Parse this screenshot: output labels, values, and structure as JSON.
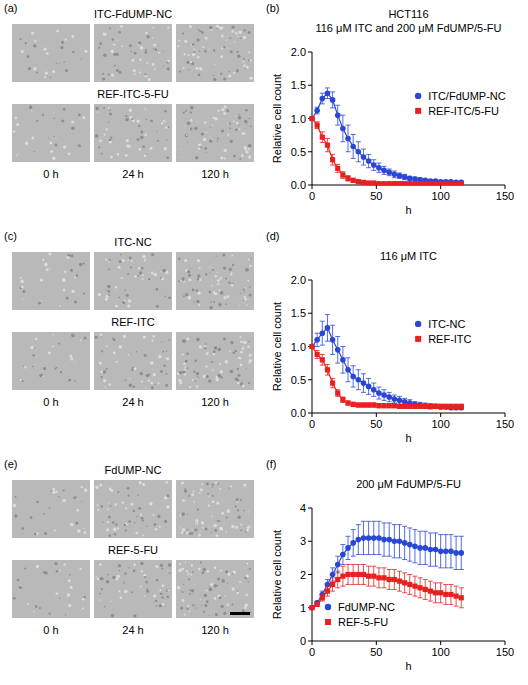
{
  "chart_data": [
    {
      "type": "line",
      "panel_label": "(b)",
      "title": "HCT116",
      "subtitle": "116 μM ITC and 200 μM FdUMP/5-FU",
      "x_label": "h",
      "y_label": "Relative cell count",
      "x": [
        0,
        4,
        8,
        12,
        16,
        20,
        24,
        28,
        32,
        36,
        40,
        44,
        48,
        52,
        56,
        60,
        64,
        68,
        72,
        76,
        80,
        84,
        88,
        92,
        96,
        100,
        104,
        108,
        112,
        116
      ],
      "xlim": [
        0,
        150
      ],
      "xticks": [
        0,
        50,
        100,
        150
      ],
      "ylim": [
        0,
        2
      ],
      "yticks": [
        {
          "value": 0,
          "label": "0.0"
        },
        0.5,
        {
          "value": 1,
          "label": "1.0"
        },
        1.5,
        {
          "value": 2,
          "label": "2.0"
        }
      ],
      "legend": "right",
      "series": [
        {
          "name": "ITC/FdUMP-NC",
          "color": "#2a46d6",
          "marker": "circle",
          "values": [
            1.0,
            1.12,
            1.3,
            1.38,
            1.28,
            1.05,
            0.85,
            0.7,
            0.58,
            0.5,
            0.42,
            0.36,
            0.3,
            0.26,
            0.22,
            0.19,
            0.16,
            0.14,
            0.12,
            0.1,
            0.09,
            0.08,
            0.07,
            0.06,
            0.06,
            0.05,
            0.05,
            0.05,
            0.04,
            0.04
          ],
          "errors": [
            0,
            0.05,
            0.08,
            0.08,
            0.12,
            0.15,
            0.2,
            0.2,
            0.18,
            0.15,
            0.12,
            0.1,
            0.08,
            0.07,
            0.06,
            0.05,
            0.05,
            0.04,
            0.04,
            0.03,
            0.03,
            0.03,
            0.02,
            0.02,
            0.02,
            0.02,
            0.02,
            0.02,
            0.02,
            0.02
          ]
        },
        {
          "name": "REF-ITC/5-FU",
          "color": "#e8201f",
          "marker": "square",
          "values": [
            1.0,
            0.9,
            0.72,
            0.6,
            0.38,
            0.25,
            0.15,
            0.1,
            0.07,
            0.05,
            0.04,
            0.03,
            0.03,
            0.02,
            0.02,
            0.02,
            0.02,
            0.02,
            0.02,
            0.02,
            0.02,
            0.02,
            0.02,
            0.02,
            0.02,
            0.02,
            0.02,
            0.02,
            0.02,
            0.02
          ],
          "errors": [
            0,
            0.05,
            0.08,
            0.1,
            0.08,
            0.06,
            0.05,
            0.04,
            0.03,
            0.02,
            0.02,
            0.02,
            0.02,
            0.01,
            0.01,
            0.01,
            0.01,
            0.01,
            0.01,
            0.01,
            0.01,
            0.01,
            0.01,
            0.01,
            0.01,
            0.01,
            0.01,
            0.01,
            0.01,
            0.01
          ]
        }
      ]
    },
    {
      "type": "line",
      "panel_label": "(d)",
      "title": "116 μM ITC",
      "x_label": "h",
      "y_label": "Relative cell count",
      "x": [
        0,
        4,
        8,
        12,
        16,
        20,
        24,
        28,
        32,
        36,
        40,
        44,
        48,
        52,
        56,
        60,
        64,
        68,
        72,
        76,
        80,
        84,
        88,
        92,
        96,
        100,
        104,
        108,
        112,
        116
      ],
      "xlim": [
        0,
        150
      ],
      "xticks": [
        0,
        50,
        100,
        150
      ],
      "ylim": [
        0,
        2
      ],
      "yticks": [
        {
          "value": 0,
          "label": "0.0"
        },
        0.5,
        {
          "value": 1,
          "label": "1.0"
        },
        1.5,
        {
          "value": 2,
          "label": "2.0"
        }
      ],
      "legend": "right",
      "series": [
        {
          "name": "ITC-NC",
          "color": "#2a46d6",
          "marker": "circle",
          "values": [
            1.0,
            1.1,
            1.2,
            1.28,
            1.1,
            0.95,
            0.8,
            0.65,
            0.55,
            0.5,
            0.45,
            0.4,
            0.35,
            0.3,
            0.27,
            0.24,
            0.21,
            0.19,
            0.17,
            0.15,
            0.13,
            0.12,
            0.11,
            0.1,
            0.1,
            0.09,
            0.09,
            0.08,
            0.08,
            0.08
          ],
          "errors": [
            0,
            0.1,
            0.18,
            0.2,
            0.22,
            0.2,
            0.2,
            0.18,
            0.16,
            0.15,
            0.14,
            0.12,
            0.1,
            0.09,
            0.08,
            0.07,
            0.06,
            0.06,
            0.05,
            0.05,
            0.04,
            0.04,
            0.04,
            0.04,
            0.03,
            0.03,
            0.03,
            0.03,
            0.03,
            0.03
          ]
        },
        {
          "name": "REF-ITC",
          "color": "#e8201f",
          "marker": "square",
          "values": [
            1.0,
            0.88,
            0.8,
            0.65,
            0.45,
            0.3,
            0.2,
            0.15,
            0.13,
            0.12,
            0.12,
            0.12,
            0.12,
            0.11,
            0.11,
            0.11,
            0.11,
            0.1,
            0.1,
            0.1,
            0.1,
            0.1,
            0.1,
            0.1,
            0.1,
            0.1,
            0.1,
            0.1,
            0.1,
            0.1
          ],
          "errors": [
            0,
            0.06,
            0.08,
            0.08,
            0.07,
            0.05,
            0.04,
            0.03,
            0.03,
            0.03,
            0.03,
            0.03,
            0.03,
            0.03,
            0.03,
            0.03,
            0.03,
            0.03,
            0.03,
            0.03,
            0.03,
            0.03,
            0.03,
            0.03,
            0.03,
            0.03,
            0.03,
            0.03,
            0.03,
            0.03
          ]
        }
      ]
    },
    {
      "type": "line",
      "panel_label": "(f)",
      "title": "200 μM FdUMP/5-FU",
      "x_label": "h",
      "y_label": "Relative cell count",
      "x": [
        0,
        4,
        8,
        12,
        16,
        20,
        24,
        28,
        32,
        36,
        40,
        44,
        48,
        52,
        56,
        60,
        64,
        68,
        72,
        76,
        80,
        84,
        88,
        92,
        96,
        100,
        104,
        108,
        112,
        116
      ],
      "xlim": [
        0,
        150
      ],
      "xticks": [
        0,
        50,
        100,
        150
      ],
      "ylim": [
        0,
        4
      ],
      "yticks": [
        0,
        1,
        2,
        3,
        4
      ],
      "legend": "lower left",
      "series": [
        {
          "name": "FdUMP-NC",
          "color": "#2a46d6",
          "marker": "circle",
          "values": [
            1.0,
            1.15,
            1.4,
            1.7,
            2.0,
            2.3,
            2.6,
            2.8,
            2.95,
            3.05,
            3.1,
            3.1,
            3.1,
            3.1,
            3.05,
            3.05,
            3.0,
            3.0,
            2.95,
            2.9,
            2.85,
            2.8,
            2.8,
            2.75,
            2.75,
            2.7,
            2.7,
            2.7,
            2.65,
            2.65
          ],
          "errors": [
            0,
            0.05,
            0.1,
            0.15,
            0.2,
            0.25,
            0.3,
            0.35,
            0.4,
            0.45,
            0.5,
            0.5,
            0.5,
            0.5,
            0.5,
            0.5,
            0.5,
            0.5,
            0.5,
            0.5,
            0.5,
            0.5,
            0.5,
            0.5,
            0.5,
            0.5,
            0.5,
            0.5,
            0.5,
            0.5
          ]
        },
        {
          "name": "REF-5-FU",
          "color": "#e8201f",
          "marker": "square",
          "values": [
            1.0,
            1.1,
            1.3,
            1.5,
            1.7,
            1.85,
            1.95,
            2.0,
            2.0,
            2.0,
            2.0,
            1.95,
            1.95,
            1.9,
            1.9,
            1.85,
            1.85,
            1.8,
            1.75,
            1.7,
            1.65,
            1.6,
            1.55,
            1.5,
            1.45,
            1.45,
            1.4,
            1.4,
            1.35,
            1.3
          ],
          "errors": [
            0,
            0.05,
            0.1,
            0.15,
            0.2,
            0.25,
            0.3,
            0.3,
            0.3,
            0.3,
            0.3,
            0.3,
            0.3,
            0.3,
            0.3,
            0.3,
            0.3,
            0.3,
            0.3,
            0.3,
            0.3,
            0.3,
            0.3,
            0.3,
            0.3,
            0.3,
            0.3,
            0.3,
            0.3,
            0.3
          ]
        }
      ]
    }
  ],
  "image_panels": [
    {
      "panel_label": "(a)",
      "rows": [
        "ITC-FdUMP-NC",
        "REF-ITC-5-FU"
      ],
      "times": [
        "0 h",
        "24 h",
        "120 h"
      ]
    },
    {
      "panel_label": "(c)",
      "rows": [
        "ITC-NC",
        "REF-ITC"
      ],
      "times": [
        "0 h",
        "24 h",
        "120 h"
      ]
    },
    {
      "panel_label": "(e)",
      "rows": [
        "FdUMP-NC",
        "REF-5-FU"
      ],
      "times": [
        "0 h",
        "24 h",
        "120 h"
      ]
    }
  ]
}
